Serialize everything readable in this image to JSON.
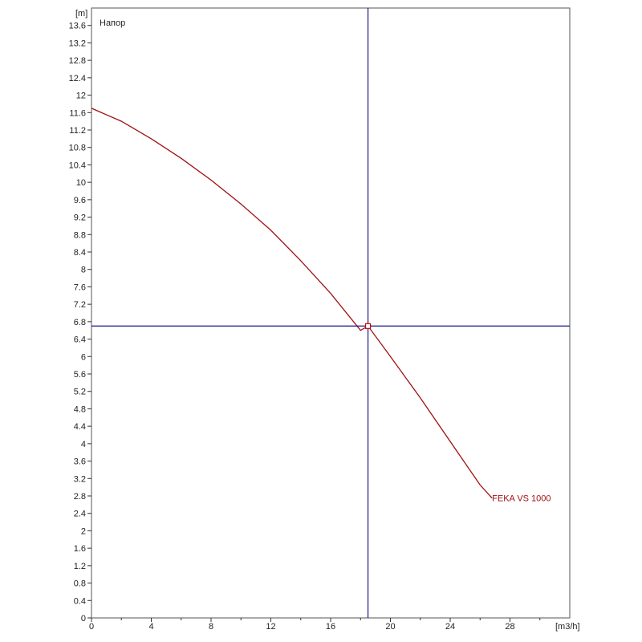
{
  "chart_data": {
    "type": "line",
    "xlabel": "[m3/h]",
    "ylabel": "[m]",
    "chart_label": "Напор",
    "xlim": [
      0,
      32
    ],
    "ylim": [
      0,
      14
    ],
    "x_ticks": [
      0,
      4,
      8,
      12,
      16,
      20,
      24,
      28
    ],
    "y_ticks": [
      0,
      0.4,
      0.8,
      1.2,
      1.6,
      2,
      2.4,
      2.8,
      3.2,
      3.6,
      4,
      4.4,
      4.8,
      5.2,
      5.6,
      6,
      6.4,
      6.8,
      7.2,
      7.6,
      8,
      8.4,
      8.8,
      9.2,
      9.6,
      10,
      10.4,
      10.8,
      11.2,
      11.6,
      12,
      12.4,
      12.8,
      13.2,
      13.6
    ],
    "grid": true,
    "series": [
      {
        "name": "FEKA VS 1000",
        "color": "#a01010",
        "x": [
          0,
          2,
          4,
          6,
          8,
          10,
          12,
          14,
          16,
          18,
          18.5,
          20,
          22,
          24,
          26,
          26.8
        ],
        "y": [
          11.7,
          11.4,
          11.0,
          10.55,
          10.05,
          9.5,
          8.9,
          8.2,
          7.45,
          6.6,
          6.7,
          6.0,
          5.05,
          4.05,
          3.05,
          2.75
        ]
      }
    ],
    "operating_point": {
      "x": 18.5,
      "y": 6.7,
      "line_color": "#1a1a8c",
      "marker_color": "#cc0000"
    }
  }
}
